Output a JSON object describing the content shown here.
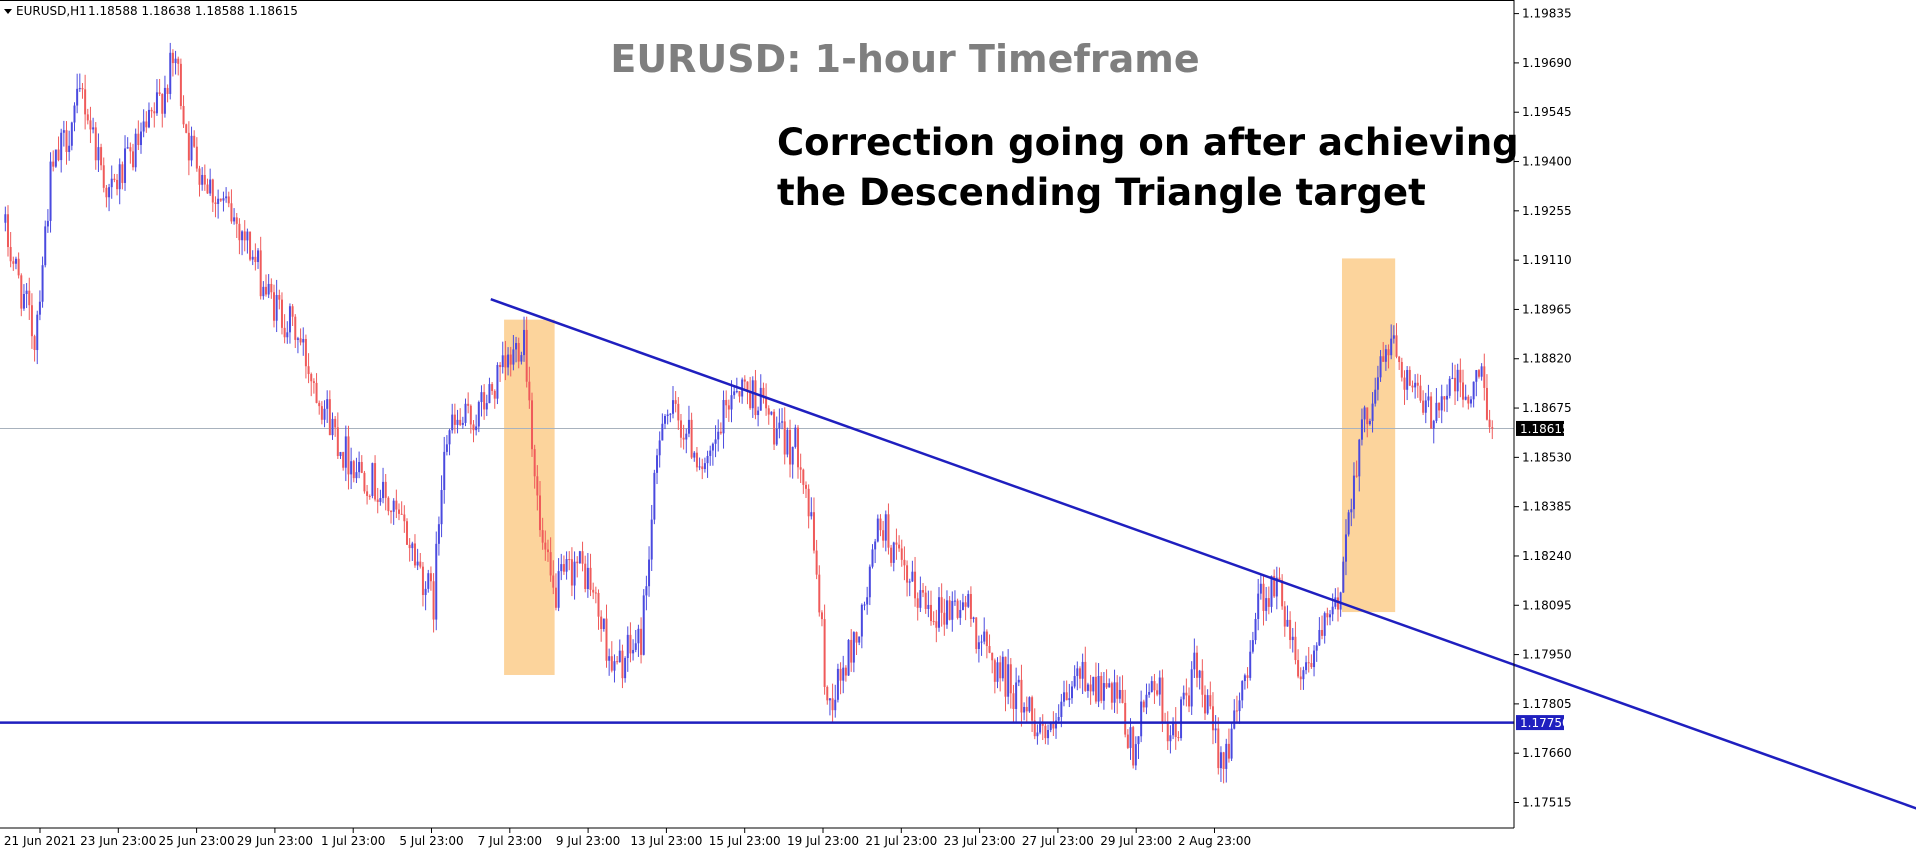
{
  "header": {
    "symbol_label": "EURUSD,H1",
    "ohlc": "1.18588 1.18638 1.18588 1.18615"
  },
  "colors": {
    "up_candle": "#4a4adf",
    "down_candle": "#ef5a5a",
    "trendline": "#1f1fbf",
    "support": "#1f1fbf",
    "highlight": "#fcd49c",
    "price_line": "#a8b2bd",
    "axis": "#000000"
  },
  "chart_data": {
    "type": "candlestick",
    "title": "EURUSD: 1-hour Timeframe",
    "annotation_lines": [
      "Correction going on after achieving",
      "the Descending Triangle target"
    ],
    "x_tick_labels": [
      "21 Jun 2021",
      "23 Jun 23:00",
      "25 Jun 23:00",
      "29 Jun 23:00",
      "1 Jul 23:00",
      "5 Jul 23:00",
      "7 Jul 23:00",
      "9 Jul 23:00",
      "13 Jul 23:00",
      "15 Jul 23:00",
      "19 Jul 23:00",
      "21 Jul 23:00",
      "23 Jul 23:00",
      "27 Jul 23:00",
      "29 Jul 23:00",
      "2 Aug 23:00"
    ],
    "y_tick_labels": [
      "1.19835",
      "1.19690",
      "1.19545",
      "1.19400",
      "1.19255",
      "1.19110",
      "1.18965",
      "1.18820",
      "1.18675",
      "1.18530",
      "1.18385",
      "1.18240",
      "1.18095",
      "1.17950",
      "1.17805",
      "1.17660",
      "1.17515"
    ],
    "ylim": [
      1.1744,
      1.19875
    ],
    "bar_count": 560,
    "current_price": 1.18615,
    "current_price_label": "1.18615",
    "support_level": 1.1775,
    "support_label": "1.17750",
    "trendline": {
      "start": {
        "bar": 183,
        "price": 1.18995
      },
      "end": {
        "bar": 727,
        "price": 1.17475
      }
    },
    "highlight_zones": [
      {
        "from_bar": 188,
        "to_bar": 207,
        "low": 1.1789,
        "high": 1.18935
      },
      {
        "from_bar": 503,
        "to_bar": 523,
        "low": 1.18075,
        "high": 1.19115
      }
    ],
    "price_path": [
      [
        0,
        1.1922
      ],
      [
        12,
        1.1888
      ],
      [
        18,
        1.1935
      ],
      [
        30,
        1.196
      ],
      [
        40,
        1.193
      ],
      [
        55,
        1.195
      ],
      [
        65,
        1.197
      ],
      [
        70,
        1.1945
      ],
      [
        80,
        1.193
      ],
      [
        90,
        1.192
      ],
      [
        100,
        1.19
      ],
      [
        110,
        1.189
      ],
      [
        120,
        1.187
      ],
      [
        128,
        1.1855
      ],
      [
        140,
        1.1845
      ],
      [
        152,
        1.183
      ],
      [
        162,
        1.181
      ],
      [
        166,
        1.186
      ],
      [
        178,
        1.1865
      ],
      [
        190,
        1.188
      ],
      [
        196,
        1.189
      ],
      [
        202,
        1.183
      ],
      [
        207,
        1.1812
      ],
      [
        215,
        1.1822
      ],
      [
        220,
        1.1818
      ],
      [
        230,
        1.179
      ],
      [
        240,
        1.18
      ],
      [
        248,
        1.1868
      ],
      [
        256,
        1.1862
      ],
      [
        265,
        1.1848
      ],
      [
        275,
        1.1875
      ],
      [
        285,
        1.187
      ],
      [
        292,
        1.1858
      ],
      [
        300,
        1.1855
      ],
      [
        306,
        1.182
      ],
      [
        310,
        1.178
      ],
      [
        316,
        1.179
      ],
      [
        323,
        1.1805
      ],
      [
        330,
        1.1835
      ],
      [
        340,
        1.1815
      ],
      [
        352,
        1.1808
      ],
      [
        362,
        1.181
      ],
      [
        370,
        1.1795
      ],
      [
        380,
        1.1785
      ],
      [
        394,
        1.177
      ],
      [
        405,
        1.179
      ],
      [
        420,
        1.178
      ],
      [
        425,
        1.1765
      ],
      [
        432,
        1.179
      ],
      [
        440,
        1.177
      ],
      [
        448,
        1.179
      ],
      [
        458,
        1.1765
      ],
      [
        464,
        1.1775
      ],
      [
        472,
        1.1812
      ],
      [
        480,
        1.1815
      ],
      [
        488,
        1.179
      ],
      [
        496,
        1.18
      ],
      [
        502,
        1.181
      ],
      [
        508,
        1.185
      ],
      [
        516,
        1.1875
      ],
      [
        522,
        1.1888
      ],
      [
        526,
        1.188
      ],
      [
        535,
        1.1865
      ],
      [
        545,
        1.1875
      ],
      [
        552,
        1.187
      ],
      [
        556,
        1.1878
      ],
      [
        560,
        1.18615
      ]
    ]
  }
}
